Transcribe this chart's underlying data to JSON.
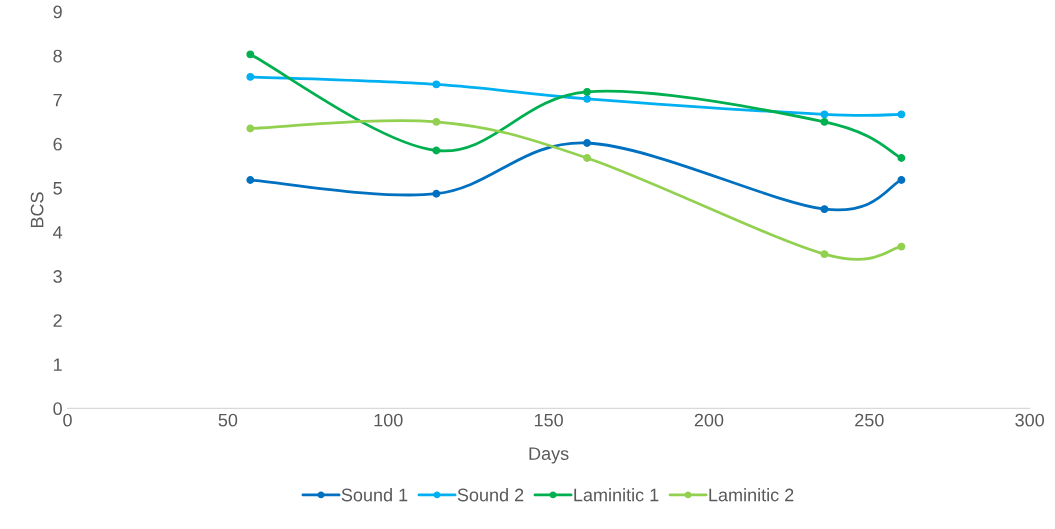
{
  "chart_data": {
    "type": "line",
    "xlabel": "Days",
    "ylabel": "BCS",
    "x": [
      57,
      115,
      162,
      236,
      260
    ],
    "xlim": [
      0,
      300
    ],
    "xticks": [
      0,
      50,
      100,
      150,
      200,
      250,
      300
    ],
    "ylim": [
      0,
      9
    ],
    "yticks": [
      0,
      1,
      2,
      3,
      4,
      5,
      6,
      7,
      8,
      9
    ],
    "grid": false,
    "legend": "bottom",
    "marker": "circle",
    "line_style": "solid",
    "series": [
      {
        "name": "Sound 1",
        "color": "#0070c0",
        "values": [
          5.18,
          4.87,
          6.02,
          4.52,
          5.18
        ]
      },
      {
        "name": "Sound 2",
        "color": "#00b0f0",
        "values": [
          7.52,
          7.35,
          7.02,
          6.67,
          6.67
        ]
      },
      {
        "name": "Laminitic 1",
        "color": "#00b050",
        "values": [
          8.03,
          5.85,
          7.18,
          6.5,
          5.68
        ]
      },
      {
        "name": "Laminitic 2",
        "color": "#92d050",
        "values": [
          6.35,
          6.5,
          5.68,
          3.5,
          3.67
        ]
      }
    ]
  }
}
